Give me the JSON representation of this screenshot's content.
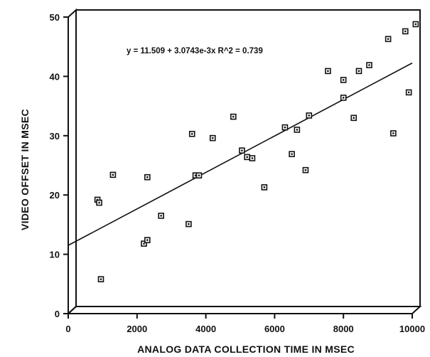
{
  "chart_data": {
    "type": "scatter",
    "title": "",
    "xlabel": "ANALOG DATA COLLECTION TIME IN MSEC",
    "ylabel": "VIDEO OFFSET IN MSEC",
    "xlim": [
      0,
      10000
    ],
    "ylim": [
      0,
      50
    ],
    "x_ticks": [
      0,
      2000,
      4000,
      6000,
      8000,
      10000
    ],
    "y_ticks": [
      0,
      10,
      20,
      30,
      40,
      50
    ],
    "x_tick_labels": [
      "0",
      "2000",
      "4000",
      "6000",
      "8000",
      "10000"
    ],
    "y_tick_labels": [
      "0",
      "10",
      "20",
      "30",
      "40",
      "50"
    ],
    "grid": false,
    "legend": "none",
    "annotation": "y = 11.509 + 3.0743e-3x   R^2 = 0.739",
    "regression": {
      "intercept": 11.509,
      "slope": 0.0030743,
      "r_squared": 0.739
    },
    "series": [
      {
        "marker": "square",
        "points": [
          [
            850,
            19.2
          ],
          [
            900,
            18.7
          ],
          [
            950,
            5.8
          ],
          [
            1300,
            23.4
          ],
          [
            2200,
            11.8
          ],
          [
            2300,
            12.4
          ],
          [
            2300,
            23.0
          ],
          [
            2700,
            16.5
          ],
          [
            3500,
            15.1
          ],
          [
            3600,
            30.3
          ],
          [
            3700,
            23.3
          ],
          [
            3800,
            23.3
          ],
          [
            4200,
            29.6
          ],
          [
            4800,
            33.2
          ],
          [
            5050,
            27.5
          ],
          [
            5200,
            26.4
          ],
          [
            5350,
            26.2
          ],
          [
            5700,
            21.3
          ],
          [
            6300,
            31.4
          ],
          [
            6500,
            26.9
          ],
          [
            6650,
            31.0
          ],
          [
            6900,
            24.2
          ],
          [
            7000,
            33.4
          ],
          [
            7550,
            40.9
          ],
          [
            8000,
            39.4
          ],
          [
            8000,
            36.4
          ],
          [
            8300,
            33.0
          ],
          [
            8450,
            40.9
          ],
          [
            8750,
            41.9
          ],
          [
            9300,
            46.3
          ],
          [
            9450,
            30.4
          ],
          [
            9800,
            47.6
          ],
          [
            9900,
            37.3
          ],
          [
            10100,
            48.8
          ]
        ]
      }
    ],
    "colors": {
      "ink": "#111111",
      "frame": "#111111"
    }
  }
}
